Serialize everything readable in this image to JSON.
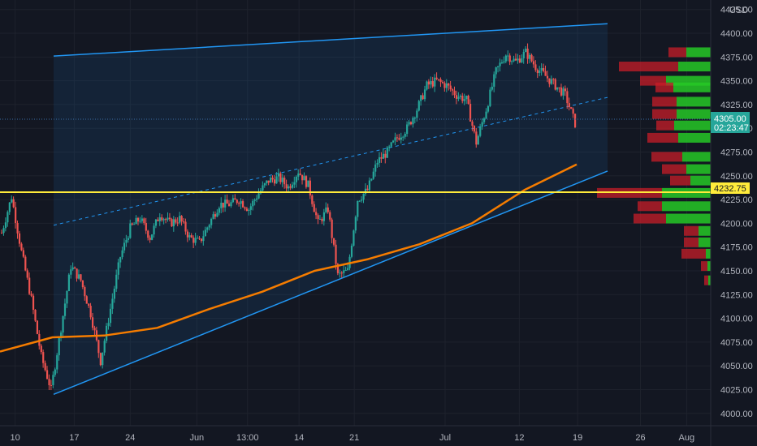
{
  "chart_data": {
    "type": "candlestick",
    "currency": "USD",
    "y_axis": {
      "ylim": [
        3987,
        4435
      ],
      "ticks": [
        "4000.00",
        "4025.00",
        "4050.00",
        "4075.00",
        "4100.00",
        "4125.00",
        "4150.00",
        "4175.00",
        "4200.00",
        "4225.00",
        "4250.00",
        "4275.00",
        "4300.00",
        "4325.00",
        "4350.00",
        "4375.00",
        "4400.00",
        "4425.00"
      ],
      "tick_values": [
        4000,
        4025,
        4050,
        4075,
        4100,
        4125,
        4150,
        4175,
        4200,
        4225,
        4250,
        4275,
        4300,
        4325,
        4350,
        4375,
        4400,
        4425
      ]
    },
    "x_axis": {
      "ticks": [
        "10",
        "17",
        "24",
        "Jun",
        "13:00",
        "14",
        "21",
        "Jul",
        "12",
        "19",
        "26",
        "Aug"
      ],
      "tick_positions": [
        0.02,
        0.098,
        0.172,
        0.26,
        0.327,
        0.395,
        0.468,
        0.588,
        0.686,
        0.763,
        0.846,
        0.907
      ]
    },
    "last_price": {
      "value": 4305.0,
      "label": "4305.00",
      "countdown": "02:23:47"
    },
    "horizontal_line": {
      "value": 4232.75,
      "label": "4232.75",
      "color": "#ffeb3b"
    },
    "channel": {
      "upper": {
        "start": 4376,
        "end": 4410
      },
      "lower": {
        "start": 4020,
        "end": 4255
      },
      "span": "May 14 – Jul 22",
      "color": "#2196f3"
    },
    "moving_average": {
      "color": "#f57c00",
      "values": [
        4065,
        4080,
        4082,
        4090,
        4110,
        4128,
        4150,
        4162,
        4178,
        4200,
        4235,
        4262
      ]
    },
    "candle_points": [
      4190,
      4228,
      4170,
      4120,
      4060,
      4025,
      4090,
      4155,
      4140,
      4105,
      4055,
      4110,
      4165,
      4195,
      4205,
      4185,
      4210,
      4200,
      4205,
      4185,
      4180,
      4200,
      4220,
      4220,
      4225,
      4215,
      4232,
      4245,
      4248,
      4238,
      4255,
      4240,
      4200,
      4215,
      4145,
      4150,
      4225,
      4235,
      4265,
      4275,
      4290,
      4300,
      4320,
      4345,
      4350,
      4345,
      4335,
      4330,
      4285,
      4320,
      4360,
      4378,
      4370,
      4380,
      4365,
      4355,
      4345,
      4335,
      4305
    ],
    "colors": {
      "up": "#26a69a",
      "down": "#ef5350",
      "background": "#131722",
      "grid": "#1e222d"
    },
    "volume_profile": [
      {
        "price": 4400,
        "up": 0,
        "down": 0
      },
      {
        "price": 4380,
        "up": 30,
        "down": 22
      },
      {
        "price": 4365,
        "up": 40,
        "down": 73
      },
      {
        "price": 4350,
        "up": 55,
        "down": 32
      },
      {
        "price": 4343,
        "up": 46,
        "down": 22
      },
      {
        "price": 4328,
        "up": 42,
        "down": 30
      },
      {
        "price": 4315,
        "up": 42,
        "down": 30
      },
      {
        "price": 4303,
        "up": 45,
        "down": 22
      },
      {
        "price": 4290,
        "up": 40,
        "down": 38
      },
      {
        "price": 4270,
        "up": 35,
        "down": 38
      },
      {
        "price": 4257,
        "up": 30,
        "down": 30
      },
      {
        "price": 4245,
        "up": 25,
        "down": 25
      },
      {
        "price": 4232,
        "up": 60,
        "down": 80
      },
      {
        "price": 4218,
        "up": 60,
        "down": 30
      },
      {
        "price": 4205,
        "up": 55,
        "down": 40
      },
      {
        "price": 4192,
        "up": 15,
        "down": 18
      },
      {
        "price": 4180,
        "up": 15,
        "down": 18
      },
      {
        "price": 4168,
        "up": 6,
        "down": 30
      },
      {
        "price": 4155,
        "up": 4,
        "down": 8
      },
      {
        "price": 4140,
        "up": 3,
        "down": 5
      }
    ]
  }
}
